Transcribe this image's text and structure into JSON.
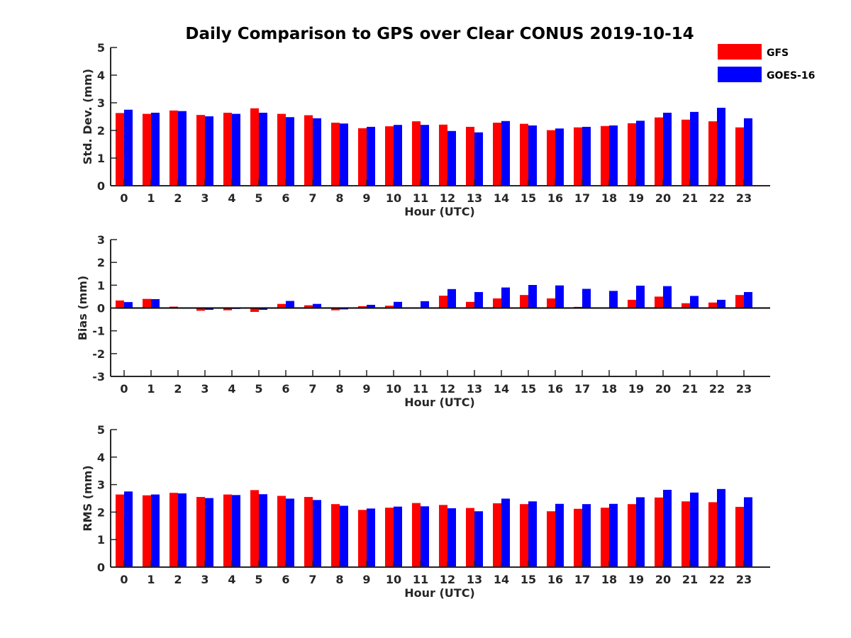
{
  "figure": {
    "title": "Daily Comparison to GPS over Clear CONUS 2019-10-14"
  },
  "legend": {
    "placement": "top-right",
    "entries": [
      {
        "label": "GFS",
        "color": "#ff0000"
      },
      {
        "label": "GOES-16",
        "color": "#0000ff"
      }
    ]
  },
  "chart_data": [
    {
      "type": "bar",
      "title": "Daily Comparison to GPS over Clear CONUS 2019-10-14",
      "xlabel": "Hour (UTC)",
      "ylabel": "Std. Dev. (mm)",
      "ylim": [
        0,
        5
      ],
      "yticks": [
        "0",
        "1",
        "2",
        "3",
        "4",
        "5"
      ],
      "categories": [
        "0",
        "1",
        "2",
        "3",
        "4",
        "5",
        "6",
        "7",
        "8",
        "9",
        "10",
        "11",
        "12",
        "13",
        "14",
        "15",
        "16",
        "17",
        "18",
        "19",
        "20",
        "21",
        "22",
        "23"
      ],
      "series": [
        {
          "name": "GFS",
          "color": "#ff0000",
          "values": [
            2.63,
            2.6,
            2.72,
            2.56,
            2.64,
            2.8,
            2.6,
            2.55,
            2.28,
            2.08,
            2.15,
            2.33,
            2.21,
            2.13,
            2.28,
            2.24,
            2.01,
            2.11,
            2.16,
            2.26,
            2.47,
            2.39,
            2.33,
            2.11
          ]
        },
        {
          "name": "GOES-16",
          "color": "#0000ff",
          "values": [
            2.75,
            2.64,
            2.7,
            2.51,
            2.6,
            2.64,
            2.48,
            2.44,
            2.25,
            2.13,
            2.2,
            2.2,
            1.98,
            1.93,
            2.34,
            2.18,
            2.07,
            2.13,
            2.18,
            2.35,
            2.64,
            2.67,
            2.82,
            2.44
          ]
        }
      ]
    },
    {
      "type": "bar",
      "xlabel": "Hour (UTC)",
      "ylabel": "Bias (mm)",
      "ylim": [
        -3,
        3
      ],
      "yticks": [
        "-3",
        "-2",
        "-1",
        "0",
        "1",
        "2",
        "3"
      ],
      "categories": [
        "0",
        "1",
        "2",
        "3",
        "4",
        "5",
        "6",
        "7",
        "8",
        "9",
        "10",
        "11",
        "12",
        "13",
        "14",
        "15",
        "16",
        "17",
        "18",
        "19",
        "20",
        "21",
        "22",
        "23"
      ],
      "series": [
        {
          "name": "GFS",
          "color": "#ff0000",
          "values": [
            0.33,
            0.4,
            0.06,
            -0.12,
            -0.1,
            -0.17,
            0.18,
            0.12,
            -0.1,
            0.08,
            0.1,
            0.02,
            0.54,
            0.27,
            0.42,
            0.57,
            0.42,
            0.05,
            0.01,
            0.36,
            0.5,
            0.21,
            0.24,
            0.57
          ]
        },
        {
          "name": "GOES-16",
          "color": "#0000ff",
          "values": [
            0.26,
            0.39,
            0.03,
            -0.08,
            -0.04,
            -0.08,
            0.31,
            0.18,
            -0.06,
            0.14,
            0.27,
            0.3,
            0.83,
            0.7,
            0.9,
            1.01,
            0.99,
            0.84,
            0.75,
            0.98,
            0.96,
            0.53,
            0.36,
            0.7
          ]
        }
      ]
    },
    {
      "type": "bar",
      "xlabel": "Hour (UTC)",
      "ylabel": "RMS (mm)",
      "ylim": [
        0,
        5
      ],
      "yticks": [
        "0",
        "1",
        "2",
        "3",
        "4",
        "5"
      ],
      "categories": [
        "0",
        "1",
        "2",
        "3",
        "4",
        "5",
        "6",
        "7",
        "8",
        "9",
        "10",
        "11",
        "12",
        "13",
        "14",
        "15",
        "16",
        "17",
        "18",
        "19",
        "20",
        "21",
        "22",
        "23"
      ],
      "series": [
        {
          "name": "GFS",
          "color": "#ff0000",
          "values": [
            2.64,
            2.61,
            2.7,
            2.55,
            2.64,
            2.8,
            2.59,
            2.55,
            2.29,
            2.08,
            2.16,
            2.33,
            2.26,
            2.15,
            2.32,
            2.29,
            2.03,
            2.12,
            2.16,
            2.29,
            2.53,
            2.39,
            2.36,
            2.19
          ]
        },
        {
          "name": "GOES-16",
          "color": "#0000ff",
          "values": [
            2.75,
            2.64,
            2.68,
            2.51,
            2.62,
            2.65,
            2.49,
            2.44,
            2.23,
            2.13,
            2.2,
            2.21,
            2.14,
            2.03,
            2.49,
            2.39,
            2.3,
            2.29,
            2.3,
            2.54,
            2.81,
            2.71,
            2.84,
            2.54
          ]
        }
      ]
    }
  ]
}
